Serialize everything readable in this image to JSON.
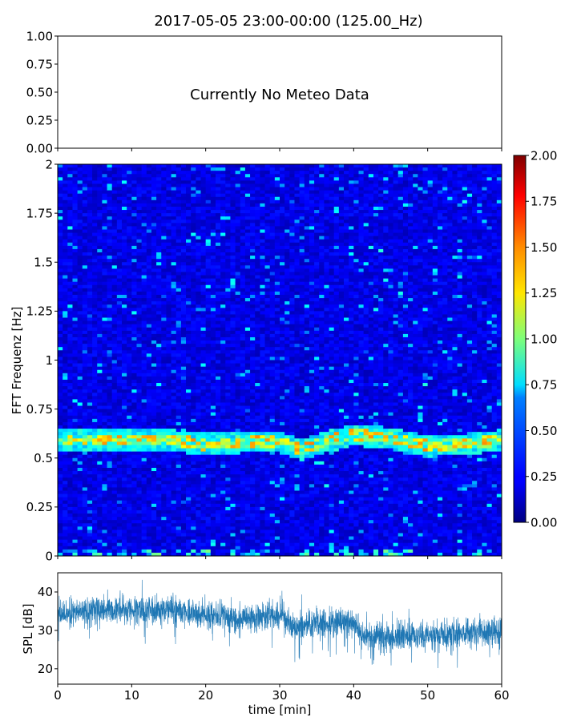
{
  "chart_data": [
    {
      "type": "text",
      "title": "2017-05-05 23:00-00:00 (125.00_Hz)",
      "message": "Currently No Meteo Data",
      "ylim": [
        0,
        1
      ],
      "yticks": [
        "0.00",
        "0.25",
        "0.50",
        "0.75",
        "1.00"
      ],
      "xticks_labeled": false
    },
    {
      "type": "heatmap",
      "ylabel": "FFT Frequenz [Hz]",
      "xlim": [
        0,
        60
      ],
      "ylim": [
        0,
        2
      ],
      "yticks": [
        "0",
        "0.25",
        "0.5",
        "0.75",
        "1",
        "1.25",
        "1.5",
        "1.75",
        "2"
      ],
      "colormap": "jet",
      "colorbar": {
        "range": [
          0,
          2
        ],
        "ticks": [
          "0.00",
          "0.25",
          "0.50",
          "0.75",
          "1.00",
          "1.25",
          "1.50",
          "1.75",
          "2.00"
        ]
      },
      "background_level": 0.2,
      "ridge": {
        "description_values_time_min": [
          0,
          5,
          10,
          15,
          20,
          25,
          30,
          33,
          36,
          40,
          45,
          50,
          55,
          60
        ],
        "frequency_hz": [
          0.59,
          0.59,
          0.59,
          0.59,
          0.57,
          0.58,
          0.58,
          0.54,
          0.58,
          0.62,
          0.6,
          0.56,
          0.57,
          0.59
        ],
        "level": 1.5
      }
    },
    {
      "type": "line",
      "xlabel": "time [min]",
      "ylabel": "SPL [dB]",
      "xlim": [
        0,
        60
      ],
      "ylim": [
        16,
        45
      ],
      "xticks": [
        "0",
        "10",
        "20",
        "30",
        "40",
        "50",
        "60"
      ],
      "yticks": [
        "20",
        "30",
        "40"
      ],
      "color": "#1f77b4",
      "series": [
        {
          "x": [
            0,
            5,
            10,
            15,
            20,
            25,
            30,
            32,
            35,
            40,
            41,
            45,
            50,
            55,
            60
          ],
          "y": [
            34,
            35.5,
            35.5,
            35.5,
            34,
            33,
            34,
            30.5,
            32,
            32,
            29,
            28.5,
            28.5,
            29.5,
            30
          ]
        }
      ]
    }
  ]
}
